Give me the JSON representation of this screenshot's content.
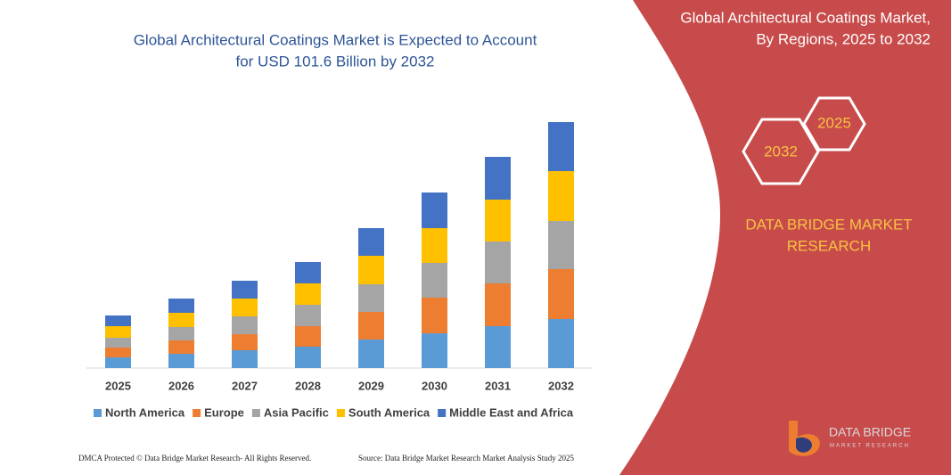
{
  "chart_data": {
    "type": "bar",
    "stacked": true,
    "title": [
      "Global Architectural Coatings Market is Expected to Account",
      "for USD 101.6 Billion by 2032"
    ],
    "categories": [
      "2025",
      "2026",
      "2027",
      "2028",
      "2029",
      "2030",
      "2031",
      "2032"
    ],
    "series": [
      {
        "name": "North America",
        "color": "#5b9bd5",
        "values": [
          12,
          16,
          20,
          24,
          32,
          39,
          47,
          55
        ]
      },
      {
        "name": "Europe",
        "color": "#ed7d31",
        "values": [
          11,
          15,
          18,
          23,
          31,
          40,
          48,
          56
        ]
      },
      {
        "name": "Asia Pacific",
        "color": "#a5a5a5",
        "values": [
          11,
          15,
          20,
          24,
          31,
          39,
          47,
          54
        ]
      },
      {
        "name": "South America",
        "color": "#ffc000",
        "values": [
          13,
          16,
          20,
          24,
          32,
          39,
          47,
          56
        ]
      },
      {
        "name": "Middle East and Africa",
        "color": "#4472c4",
        "values": [
          12,
          16,
          20,
          24,
          31,
          40,
          48,
          55
        ]
      }
    ],
    "ylim": [
      0,
      290
    ]
  },
  "panel": {
    "title": [
      "Global Architectural Coatings Market,",
      "By Regions, 2025 to 2032"
    ],
    "hexagons": [
      "2025",
      "2032"
    ],
    "brand": [
      "DATA BRIDGE MARKET",
      "RESEARCH"
    ],
    "logo": [
      "DATA BRIDGE",
      "MARKET RESEARCH"
    ]
  },
  "footer": {
    "left": "DMCA Protected © Data Bridge Market Research- All Rights Reserved.",
    "right": "Source: Data Bridge Market Research  Market Analysis Study 2025"
  }
}
